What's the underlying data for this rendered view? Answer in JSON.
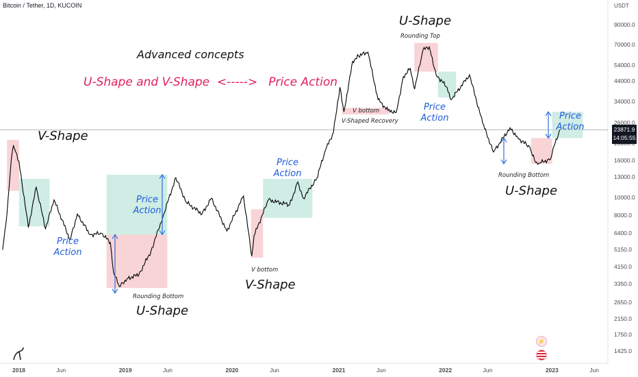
{
  "header": {
    "symbol_title": "Bitcoin / Tether, 1D, KUCOIN"
  },
  "y_axis": {
    "unit": "USDT",
    "ticks": [
      "90000.0",
      "70000.0",
      "54000.0",
      "44000.0",
      "34000.0",
      "26000.0",
      "20000.0",
      "16000.0",
      "13000.0",
      "10000.0",
      "8000.0",
      "6400.0",
      "5150.0",
      "4150.0",
      "3350.0",
      "2650.0",
      "2150.0",
      "1750.0",
      "1425.0"
    ],
    "current_price": "23871.9",
    "countdown": "14:05:55"
  },
  "x_axis": {
    "ticks": [
      "2018",
      "Jun",
      "2019",
      "Jun",
      "2020",
      "Jun",
      "2021",
      "Jun",
      "2022",
      "Jun",
      "2023",
      "Jun"
    ]
  },
  "annotations": {
    "advanced": "Advanced  concepts",
    "headline": "U-Shape and V-Shape  <----->   Price Action",
    "v_shape_1": "V-Shape",
    "price_action_1": "Price\nAction",
    "price_action_2": "Price\nAction",
    "rounding_bottom_1": "Rounding Bottom",
    "u_shape_1": "U-Shape",
    "v_bottom_1": "V bottom",
    "v_shape_2": "V-Shape",
    "price_action_3": "Price\nAction",
    "v_bottom_2": "V bottom",
    "v_recovery": "V-Shaped Recovery",
    "u_shape_top": "U-Shape",
    "rounding_top": "Rounding Top",
    "price_action_4": "Price\nAction",
    "rounding_bottom_2": "Rounding Bottom",
    "u_shape_2": "U-Shape",
    "price_action_5": "Price\nAction"
  },
  "colors": {
    "pattern_zone": "#f5c6c9",
    "action_zone": "#bfe6dc",
    "arrow": "#2f6fe0",
    "line": "#000000"
  },
  "chart_data": {
    "type": "line",
    "title": "Bitcoin / Tether, 1D, KUCOIN",
    "ylabel": "USDT",
    "y_scale": "log",
    "ylim": [
      1300,
      125000
    ],
    "xlim": [
      "2017-11-01",
      "2023-07-15"
    ],
    "series": [
      {
        "x": [
          "2017-11-10",
          "2017-11-25",
          "2017-12-10",
          "2017-12-17",
          "2018-01-05",
          "2018-02-06",
          "2018-03-05",
          "2018-04-06",
          "2018-05-05",
          "2018-06-29",
          "2018-07-24",
          "2018-09-05",
          "2018-10-15",
          "2018-11-14",
          "2018-11-25",
          "2018-12-15",
          "2019-01-10",
          "2019-02-20",
          "2019-04-02",
          "2019-05-15",
          "2019-06-26",
          "2019-08-01",
          "2019-09-24",
          "2019-10-26",
          "2019-12-18",
          "2020-02-13",
          "2020-03-12",
          "2020-03-20",
          "2020-05-08",
          "2020-07-20",
          "2020-08-17",
          "2020-09-05",
          "2020-10-21",
          "2020-11-20",
          "2020-12-17",
          "2021-01-08",
          "2021-01-22",
          "2021-02-21",
          "2021-03-13",
          "2021-04-14",
          "2021-05-19",
          "2021-06-22",
          "2021-07-20",
          "2021-08-14",
          "2021-09-06",
          "2021-09-21",
          "2021-10-20",
          "2021-11-10",
          "2021-12-04",
          "2022-01-10",
          "2022-01-24",
          "2022-03-28",
          "2022-05-12",
          "2022-06-18",
          "2022-08-14",
          "2022-09-10",
          "2022-10-20",
          "2022-11-09",
          "2022-11-21",
          "2022-12-31",
          "2023-01-12",
          "2023-01-28",
          "2023-02-01"
        ],
        "y": [
          5200,
          8200,
          16500,
          19500,
          16000,
          6900,
          11500,
          6800,
          9800,
          5900,
          8200,
          6300,
          6400,
          5700,
          3900,
          3250,
          3600,
          3800,
          5100,
          8100,
          13000,
          9500,
          8200,
          10000,
          6600,
          10300,
          4800,
          6200,
          9800,
          9200,
          12300,
          10000,
          12900,
          18500,
          23000,
          41000,
          30000,
          57000,
          61000,
          64000,
          35000,
          30500,
          29800,
          47000,
          52000,
          40000,
          66000,
          68500,
          48000,
          41000,
          35000,
          48000,
          26000,
          18000,
          24500,
          21500,
          19200,
          15800,
          15600,
          16500,
          19500,
          23000,
          23900
        ]
      }
    ],
    "pattern_zones": [
      {
        "type": "pattern",
        "label": "V-Shape",
        "x": [
          "2017-11-25",
          "2018-01-05"
        ],
        "y": [
          11000,
          21000
        ]
      },
      {
        "type": "action",
        "label": "Price Action",
        "x": [
          "2018-01-05",
          "2018-04-20"
        ],
        "y": [
          7000,
          12800
        ]
      },
      {
        "type": "action",
        "label": "Price Action",
        "x": [
          "2018-11-01",
          "2019-05-28"
        ],
        "y": [
          6300,
          13500
        ]
      },
      {
        "type": "pattern",
        "label": "U-Shape",
        "x": [
          "2018-11-01",
          "2019-05-28"
        ],
        "y": [
          3200,
          6300
        ]
      },
      {
        "type": "pattern",
        "label": "V-Shape",
        "x": [
          "2020-03-10",
          "2020-04-20"
        ],
        "y": [
          4700,
          8700
        ]
      },
      {
        "type": "action",
        "label": "Price Action",
        "x": [
          "2020-04-20",
          "2020-10-06"
        ],
        "y": [
          7800,
          12800
        ]
      },
      {
        "type": "pattern",
        "label": "V-Shaped Recovery",
        "x": [
          "2021-01-15",
          "2021-06-25"
        ],
        "y": [
          29000,
          31500
        ]
      },
      {
        "type": "pattern",
        "label": "U-Shape",
        "x": [
          "2021-09-20",
          "2021-12-10"
        ],
        "y": [
          50000,
          72000
        ]
      },
      {
        "type": "action",
        "label": "Price Action",
        "x": [
          "2021-12-10",
          "2022-02-10"
        ],
        "y": [
          36000,
          50000
        ]
      },
      {
        "type": "pattern",
        "label": "U-Shape",
        "x": [
          "2022-10-25",
          "2023-01-05"
        ],
        "y": [
          15500,
          21500
        ]
      },
      {
        "type": "action",
        "label": "Price Action",
        "x": [
          "2023-01-05",
          "2023-04-20"
        ],
        "y": [
          21500,
          30000
        ]
      }
    ]
  }
}
